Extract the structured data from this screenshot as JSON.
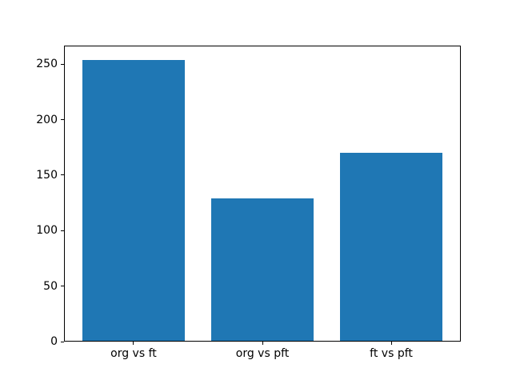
{
  "figure": {
    "background_color": "#ffffff",
    "text_color": "#000000"
  },
  "chart_data": {
    "type": "bar",
    "categories": [
      "org vs ft",
      "org vs pft",
      "ft vs pft"
    ],
    "values": [
      254,
      129,
      170
    ],
    "title": "",
    "xlabel": "",
    "ylabel": "",
    "ylim": [
      0,
      266.7
    ],
    "xlim": [
      -0.54,
      2.54
    ],
    "yticks": [
      0,
      50,
      100,
      150,
      200,
      250
    ],
    "ytick_labels": [
      "0",
      "50",
      "100",
      "150",
      "200",
      "250"
    ],
    "bar_width": 0.8,
    "bar_color": "#1f77b4",
    "grid": false,
    "legend": null
  }
}
